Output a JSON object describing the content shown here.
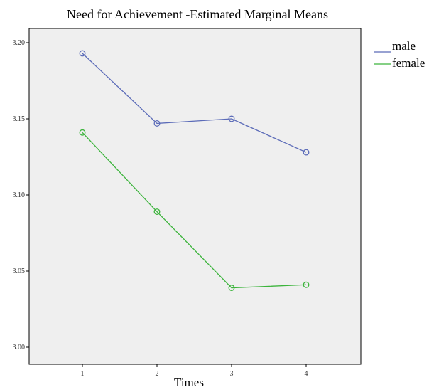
{
  "chart_data": {
    "type": "line",
    "title": "Need for Achievement -Estimated Marginal Means",
    "xlabel": "Times",
    "ylabel": "",
    "categories": [
      "1",
      "2",
      "3",
      "4"
    ],
    "ylim": [
      3.0,
      3.2
    ],
    "yticks": [
      "3.00",
      "3.05",
      "3.10",
      "3.15",
      "3.20"
    ],
    "series": [
      {
        "name": "male",
        "color": "#5b6bb8",
        "values": [
          3.193,
          3.147,
          3.15,
          3.128
        ]
      },
      {
        "name": "female",
        "color": "#3cb43c",
        "values": [
          3.141,
          3.089,
          3.039,
          3.041
        ]
      }
    ],
    "legend_position": "top-right",
    "plot_background": "#efefef",
    "marker": "open-circle"
  }
}
